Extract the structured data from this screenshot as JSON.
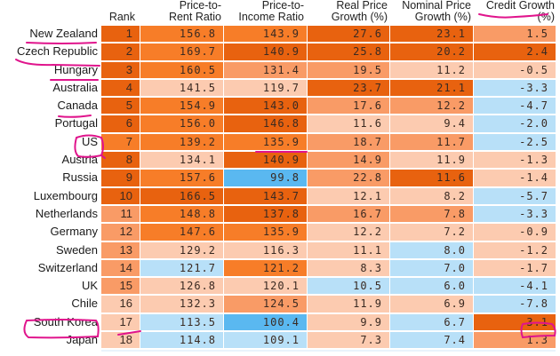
{
  "chart_data": {
    "type": "table",
    "title": "",
    "columns": [
      "",
      "Rank",
      "Price-to-Rent Ratio",
      "Price-to-Income Ratio",
      "Real Price Growth (%)",
      "Nominal Price Growth (%)",
      "Credit Growth (%)"
    ],
    "header_lines": {
      "rank": [
        "Rank"
      ],
      "rent": [
        "Price-to-",
        "Rent Ratio"
      ],
      "income": [
        "Price-to-",
        "Income Ratio"
      ],
      "real": [
        "Real Price",
        "Growth (%)"
      ],
      "nominal": [
        "Nominal Price",
        "Growth (%)"
      ],
      "credit": [
        "Credit Growth",
        "(%)"
      ]
    },
    "rows": [
      {
        "country": "New Zealand",
        "rank": "1",
        "rent": "156.8",
        "income": "143.9",
        "real": "27.6",
        "nominal": "23.1",
        "credit": "1.5"
      },
      {
        "country": "Czech Republic",
        "rank": "2",
        "rent": "169.7",
        "income": "140.9",
        "real": "25.8",
        "nominal": "20.2",
        "credit": "2.4"
      },
      {
        "country": "Hungary",
        "rank": "3",
        "rent": "160.5",
        "income": "131.4",
        "real": "19.5",
        "nominal": "11.2",
        "credit": "-0.5"
      },
      {
        "country": "Australia",
        "rank": "4",
        "rent": "141.5",
        "income": "119.7",
        "real": "23.7",
        "nominal": "21.1",
        "credit": "-3.3"
      },
      {
        "country": "Canada",
        "rank": "5",
        "rent": "154.9",
        "income": "143.0",
        "real": "17.6",
        "nominal": "12.2",
        "credit": "-4.7"
      },
      {
        "country": "Portugal",
        "rank": "6",
        "rent": "156.0",
        "income": "146.8",
        "real": "11.6",
        "nominal": "9.4",
        "credit": "-2.0"
      },
      {
        "country": "US",
        "rank": "7",
        "rent": "139.2",
        "income": "135.9",
        "real": "18.7",
        "nominal": "11.7",
        "credit": "-2.5"
      },
      {
        "country": "Austria",
        "rank": "8",
        "rent": "134.1",
        "income": "140.9",
        "real": "14.9",
        "nominal": "11.9",
        "credit": "-1.3"
      },
      {
        "country": "Russia",
        "rank": "9",
        "rent": "157.6",
        "income": "99.8",
        "real": "22.8",
        "nominal": "11.6",
        "credit": "-1.4"
      },
      {
        "country": "Luxembourg",
        "rank": "10",
        "rent": "166.5",
        "income": "143.7",
        "real": "12.1",
        "nominal": "8.2",
        "credit": "-5.7"
      },
      {
        "country": "Netherlands",
        "rank": "11",
        "rent": "148.8",
        "income": "137.8",
        "real": "16.7",
        "nominal": "7.8",
        "credit": "-3.3"
      },
      {
        "country": "Germany",
        "rank": "12",
        "rent": "147.6",
        "income": "135.9",
        "real": "12.2",
        "nominal": "7.2",
        "credit": "-0.9"
      },
      {
        "country": "Sweden",
        "rank": "13",
        "rent": "129.2",
        "income": "116.3",
        "real": "11.1",
        "nominal": "8.0",
        "credit": "-1.2"
      },
      {
        "country": "Switzerland",
        "rank": "14",
        "rent": "121.7",
        "income": "121.2",
        "real": "8.3",
        "nominal": "7.0",
        "credit": "-1.7"
      },
      {
        "country": "UK",
        "rank": "15",
        "rent": "126.8",
        "income": "120.1",
        "real": "10.5",
        "nominal": "6.0",
        "credit": "-4.1"
      },
      {
        "country": "Chile",
        "rank": "16",
        "rent": "132.3",
        "income": "124.5",
        "real": "11.9",
        "nominal": "6.9",
        "credit": "-7.8"
      },
      {
        "country": "South Korea",
        "rank": "17",
        "rent": "113.5",
        "income": "100.4",
        "real": "9.9",
        "nominal": "6.7",
        "credit": "3.1"
      },
      {
        "country": "Japan",
        "rank": "18",
        "rent": "114.8",
        "income": "109.1",
        "real": "7.3",
        "nominal": "7.4",
        "credit": "1.3"
      }
    ],
    "shades": [
      [
        "d",
        "o",
        "o",
        "d",
        "d",
        "m"
      ],
      [
        "d",
        "o",
        "d",
        "d",
        "d",
        "d"
      ],
      [
        "d",
        "o",
        "m",
        "m",
        "l",
        "l"
      ],
      [
        "d",
        "l",
        "l",
        "d",
        "d",
        "b"
      ],
      [
        "d",
        "o",
        "d",
        "m",
        "m",
        "b"
      ],
      [
        "d",
        "o",
        "d",
        "l",
        "l",
        "b"
      ],
      [
        "o",
        "o",
        "o",
        "m",
        "m",
        "b"
      ],
      [
        "d",
        "l",
        "d",
        "m",
        "l",
        "l"
      ],
      [
        "d",
        "o",
        "B",
        "m",
        "d",
        "l"
      ],
      [
        "d",
        "d",
        "d",
        "l",
        "l",
        "b"
      ],
      [
        "m",
        "o",
        "d",
        "m",
        "m",
        "b"
      ],
      [
        "m",
        "o",
        "o",
        "l",
        "l",
        "l"
      ],
      [
        "m",
        "l",
        "l",
        "l",
        "b",
        "l"
      ],
      [
        "m",
        "b",
        "o",
        "l",
        "b",
        "l"
      ],
      [
        "m",
        "l",
        "l",
        "b",
        "b",
        "b"
      ],
      [
        "l",
        "l",
        "m",
        "l",
        "l",
        "b"
      ],
      [
        "l",
        "b",
        "B",
        "l",
        "b",
        "d"
      ],
      [
        "l",
        "b",
        "b",
        "l",
        "b",
        "m"
      ]
    ],
    "palette": {
      "d": "#e8620f",
      "o": "#f77d28",
      "m": "#f99b66",
      "l": "#fccbb0",
      "b": "#b8e0f8",
      "B": "#5ab8f0"
    },
    "annotation_color": "#e0148c",
    "underlined": [
      "New Zealand",
      "Czech Republic",
      "Hungary",
      "Canada"
    ],
    "circled": [
      "US",
      "South Korea"
    ]
  }
}
